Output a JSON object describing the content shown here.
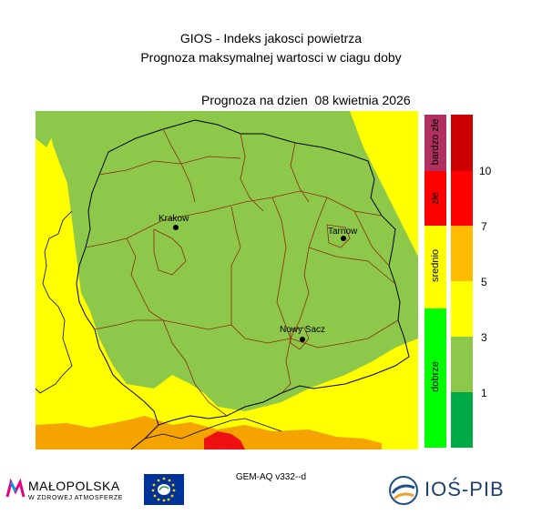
{
  "header": {
    "title": "GIOS - Indeks jakosci powietrza",
    "subtitle": "Prognoza maksymalnej wartosci w ciagu doby",
    "forecast_date": "Prognoza na dzien  08 kwietnia 2026"
  },
  "map": {
    "cities": [
      {
        "name": "Krakow"
      },
      {
        "name": "Tarnow"
      },
      {
        "name": "Nowy Sacz"
      }
    ],
    "colors": {
      "background_yellow": "#ffff00",
      "light_green": "#8dc84b",
      "orange": "#ffa500",
      "red": "#ff0000",
      "border_black": "#000000",
      "border_brown": "#8b2c10"
    }
  },
  "legend": {
    "categories": [
      {
        "label": "bardzo złe",
        "color": "#b03060"
      },
      {
        "label": "złe",
        "color": "#ff0000"
      },
      {
        "label": "srednio",
        "color": "#ffff00"
      },
      {
        "label": "dobrze",
        "color": "#00ff00"
      }
    ],
    "scale_colors": [
      "#cc0000",
      "#ff0000",
      "#ffbb00",
      "#ffff00",
      "#8dc84b",
      "#00aa44"
    ],
    "ticks": [
      "10",
      "7",
      "5",
      "3",
      "1"
    ]
  },
  "footer": {
    "model": "GEM-AQ v332--d",
    "logo_left_title": "MAŁOPOLSKA",
    "logo_left_sub": "W ZDROWEJ ATMOSFERZE",
    "logo_right": "IOŚ-PIB"
  }
}
